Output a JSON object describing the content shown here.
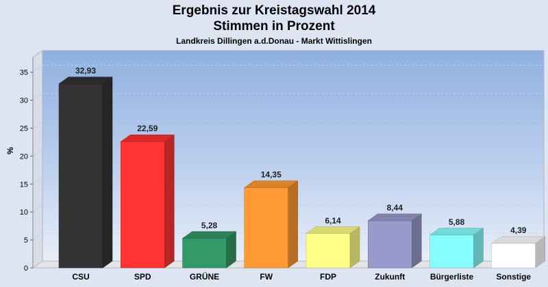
{
  "chart_data": {
    "type": "bar",
    "title": "Ergebnis zur Kreistagswahl 2014",
    "subtitle": "Stimmen in Prozent",
    "caption": "Landkreis Dillingen a.d.Donau - Markt Wittislingen",
    "ylabel": "%",
    "xlabel": "",
    "ylim": [
      0,
      37
    ],
    "yticks": [
      0,
      5,
      10,
      15,
      20,
      25,
      30,
      35
    ],
    "categories": [
      "CSU",
      "SPD",
      "GRÜNE",
      "FW",
      "FDP",
      "Zukunft",
      "Bürgerliste",
      "Sonstige"
    ],
    "values": [
      32.93,
      22.59,
      5.28,
      14.35,
      6.14,
      8.44,
      5.88,
      4.39
    ],
    "value_labels": [
      "32,93",
      "22,59",
      "5,28",
      "14,35",
      "6,14",
      "8,44",
      "5,88",
      "4,39"
    ],
    "colors": [
      "#333333",
      "#ff3333",
      "#339966",
      "#ff9933",
      "#ffff88",
      "#9999cc",
      "#88ffff",
      "#ffffff"
    ],
    "grid": true
  }
}
